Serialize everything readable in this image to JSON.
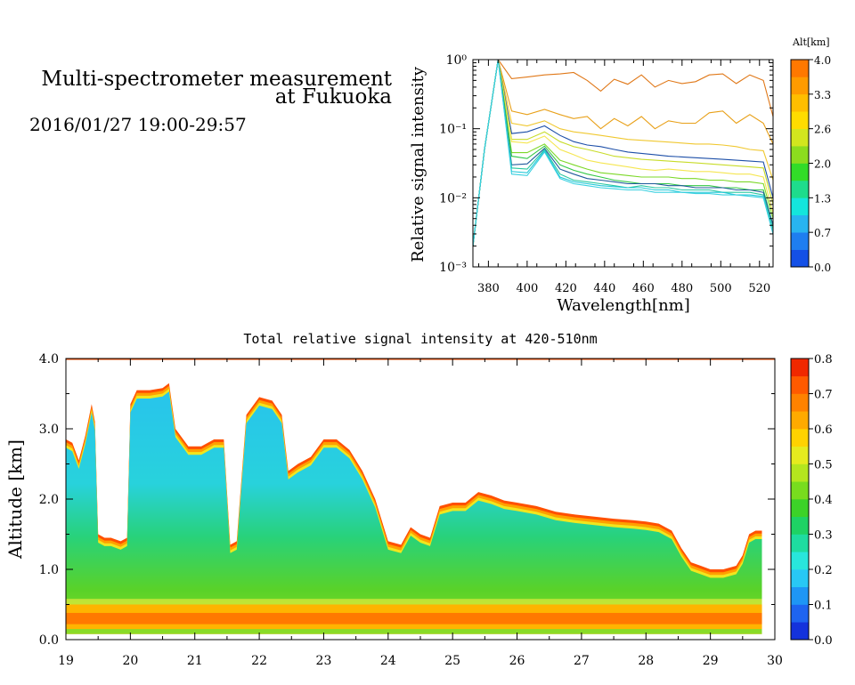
{
  "header": {
    "title_line1": "Multi-spectrometer measurement",
    "title_line2": "at Fukuoka",
    "date_range": "2016/01/27 19:00-29:57"
  },
  "chart_data": [
    {
      "id": "spectrum",
      "type": "line",
      "title": "",
      "xlabel": "Wavelength[nm]",
      "ylabel": "Relative signal intensity",
      "yscale": "log",
      "xlim": [
        372,
        527
      ],
      "ylim": [
        0.001,
        1
      ],
      "xticks": [
        "380",
        "400",
        "420",
        "440",
        "460",
        "480",
        "500",
        "520"
      ],
      "yticks": [
        "10⁻³",
        "10⁻²",
        "10⁻¹",
        "10⁰"
      ],
      "grid": false,
      "legend": "colorbar-right",
      "colorbar": {
        "title": "Alt[km]",
        "ticks": [
          "0.0",
          "0.7",
          "1.3",
          "2.0",
          "2.6",
          "3.3",
          "4.0"
        ],
        "colors": [
          "#1450e6",
          "#1e7ef0",
          "#28b4f0",
          "#14e6dc",
          "#1edc8c",
          "#32dc28",
          "#8cdc1e",
          "#d2e61e",
          "#ffdc00",
          "#ffbe00",
          "#ff9b00",
          "#ff7800"
        ]
      },
      "x": [
        372,
        378,
        385,
        392,
        400,
        409,
        417,
        424,
        431,
        438,
        445,
        452,
        459,
        466,
        473,
        480,
        487,
        494,
        501,
        508,
        515,
        522,
        527
      ],
      "series": [
        {
          "color": "#e07818",
          "values": [
            0.002,
            0.05,
            1.0,
            0.53,
            0.56,
            0.6,
            0.62,
            0.65,
            0.5,
            0.35,
            0.52,
            0.44,
            0.6,
            0.4,
            0.5,
            0.45,
            0.48,
            0.6,
            0.62,
            0.45,
            0.6,
            0.5,
            0.15
          ]
        },
        {
          "color": "#e8a018",
          "values": [
            0.002,
            0.05,
            1.0,
            0.18,
            0.16,
            0.19,
            0.16,
            0.14,
            0.15,
            0.1,
            0.14,
            0.11,
            0.15,
            0.1,
            0.13,
            0.12,
            0.12,
            0.17,
            0.18,
            0.12,
            0.16,
            0.12,
            0.06
          ]
        },
        {
          "color": "#f0c830",
          "values": [
            0.002,
            0.05,
            1.0,
            0.12,
            0.11,
            0.13,
            0.1,
            0.09,
            0.085,
            0.08,
            0.075,
            0.07,
            0.068,
            0.066,
            0.064,
            0.062,
            0.06,
            0.06,
            0.058,
            0.055,
            0.05,
            0.048,
            0.018
          ]
        },
        {
          "color": "#1d4fa8",
          "values": [
            0.002,
            0.05,
            1.0,
            0.085,
            0.09,
            0.11,
            0.08,
            0.065,
            0.058,
            0.055,
            0.05,
            0.046,
            0.044,
            0.042,
            0.04,
            0.039,
            0.038,
            0.037,
            0.036,
            0.035,
            0.034,
            0.033,
            0.01
          ]
        },
        {
          "color": "#c8dc28",
          "values": [
            0.002,
            0.05,
            1.0,
            0.07,
            0.07,
            0.09,
            0.065,
            0.055,
            0.05,
            0.045,
            0.04,
            0.038,
            0.036,
            0.035,
            0.034,
            0.033,
            0.032,
            0.031,
            0.03,
            0.029,
            0.028,
            0.027,
            0.008
          ]
        },
        {
          "color": "#f5e650",
          "values": [
            0.002,
            0.05,
            1.0,
            0.065,
            0.062,
            0.078,
            0.05,
            0.042,
            0.035,
            0.032,
            0.03,
            0.028,
            0.026,
            0.025,
            0.026,
            0.025,
            0.024,
            0.024,
            0.023,
            0.022,
            0.022,
            0.02,
            0.006
          ]
        },
        {
          "color": "#7cd828",
          "values": [
            0.002,
            0.05,
            1.0,
            0.045,
            0.045,
            0.06,
            0.035,
            0.03,
            0.026,
            0.023,
            0.022,
            0.021,
            0.02,
            0.02,
            0.02,
            0.019,
            0.019,
            0.018,
            0.018,
            0.017,
            0.017,
            0.016,
            0.005
          ]
        },
        {
          "color": "#32c846",
          "values": [
            0.002,
            0.05,
            1.0,
            0.04,
            0.037,
            0.056,
            0.03,
            0.025,
            0.022,
            0.02,
            0.018,
            0.017,
            0.016,
            0.016,
            0.016,
            0.015,
            0.015,
            0.015,
            0.014,
            0.014,
            0.013,
            0.013,
            0.004
          ]
        },
        {
          "color": "#205a9c",
          "values": [
            0.002,
            0.05,
            1.0,
            0.03,
            0.031,
            0.052,
            0.026,
            0.022,
            0.019,
            0.018,
            0.017,
            0.016,
            0.016,
            0.016,
            0.015,
            0.015,
            0.014,
            0.014,
            0.014,
            0.013,
            0.013,
            0.012,
            0.004
          ]
        },
        {
          "color": "#28c8a0",
          "values": [
            0.002,
            0.05,
            1.0,
            0.027,
            0.026,
            0.05,
            0.022,
            0.018,
            0.017,
            0.016,
            0.015,
            0.014,
            0.015,
            0.014,
            0.014,
            0.013,
            0.013,
            0.013,
            0.012,
            0.012,
            0.012,
            0.011,
            0.0035
          ]
        },
        {
          "color": "#20c8d8",
          "values": [
            0.002,
            0.05,
            1.0,
            0.024,
            0.023,
            0.048,
            0.02,
            0.017,
            0.016,
            0.015,
            0.0145,
            0.014,
            0.014,
            0.013,
            0.013,
            0.012,
            0.012,
            0.012,
            0.012,
            0.011,
            0.011,
            0.0105,
            0.003
          ]
        },
        {
          "color": "#3ad0e0",
          "values": [
            0.002,
            0.05,
            1.0,
            0.022,
            0.021,
            0.046,
            0.019,
            0.016,
            0.015,
            0.014,
            0.0135,
            0.013,
            0.013,
            0.012,
            0.012,
            0.012,
            0.0115,
            0.0115,
            0.011,
            0.011,
            0.0105,
            0.01,
            0.003
          ]
        }
      ]
    },
    {
      "id": "curtain",
      "type": "heatmap",
      "title": "Total relative signal intensity at 420-510nm",
      "xlabel": "",
      "ylabel": "Altitude [km]",
      "xlim": [
        19,
        30
      ],
      "ylim": [
        0,
        4
      ],
      "xticks": [
        "19",
        "20",
        "21",
        "22",
        "23",
        "24",
        "25",
        "26",
        "27",
        "28",
        "29",
        "30"
      ],
      "yticks": [
        "0.0",
        "1.0",
        "2.0",
        "3.0",
        "4.0"
      ],
      "grid": false,
      "legend": "colorbar-right",
      "colorbar": {
        "ticks": [
          "0.0",
          "0.1",
          "0.2",
          "0.3",
          "0.4",
          "0.5",
          "0.6",
          "0.7",
          "0.8"
        ],
        "colors": [
          "#1432dc",
          "#1e64f0",
          "#1e96f5",
          "#28c8f5",
          "#28e6dc",
          "#1edca0",
          "#1ed264",
          "#3cd228",
          "#78dc1e",
          "#b4e61e",
          "#e6eb1e",
          "#ffd200",
          "#ffaa00",
          "#ff8200",
          "#ff5a00",
          "#f02800"
        ]
      },
      "layer_top_km": {
        "time": [
          19.0,
          19.1,
          19.2,
          19.3,
          19.4,
          19.45,
          19.5,
          19.6,
          19.7,
          19.85,
          19.95,
          20.0,
          20.1,
          20.3,
          20.5,
          20.6,
          20.7,
          20.9,
          21.1,
          21.3,
          21.45,
          21.55,
          21.65,
          21.8,
          22.0,
          22.2,
          22.35,
          22.45,
          22.6,
          22.8,
          23.0,
          23.2,
          23.4,
          23.6,
          23.8,
          24.0,
          24.2,
          24.35,
          24.5,
          24.65,
          24.8,
          25.0,
          25.2,
          25.4,
          25.6,
          25.8,
          26.0,
          26.3,
          26.6,
          26.9,
          27.2,
          27.5,
          27.8,
          28.0,
          28.2,
          28.4,
          28.55,
          28.7,
          28.85,
          29.0,
          29.2,
          29.4,
          29.5,
          29.6,
          29.7,
          29.8
        ],
        "km": [
          2.85,
          2.8,
          2.55,
          2.9,
          3.35,
          3.1,
          1.5,
          1.45,
          1.45,
          1.4,
          1.45,
          3.35,
          3.55,
          3.55,
          3.58,
          3.65,
          3.0,
          2.75,
          2.75,
          2.85,
          2.85,
          1.35,
          1.4,
          3.2,
          3.45,
          3.4,
          3.2,
          2.4,
          2.5,
          2.6,
          2.85,
          2.85,
          2.7,
          2.4,
          2.0,
          1.4,
          1.35,
          1.6,
          1.5,
          1.45,
          1.9,
          1.95,
          1.95,
          2.1,
          2.05,
          1.98,
          1.95,
          1.9,
          1.82,
          1.78,
          1.75,
          1.72,
          1.7,
          1.68,
          1.65,
          1.55,
          1.3,
          1.1,
          1.05,
          1.0,
          1.0,
          1.05,
          1.2,
          1.5,
          1.55,
          1.55
        ]
      }
    }
  ]
}
